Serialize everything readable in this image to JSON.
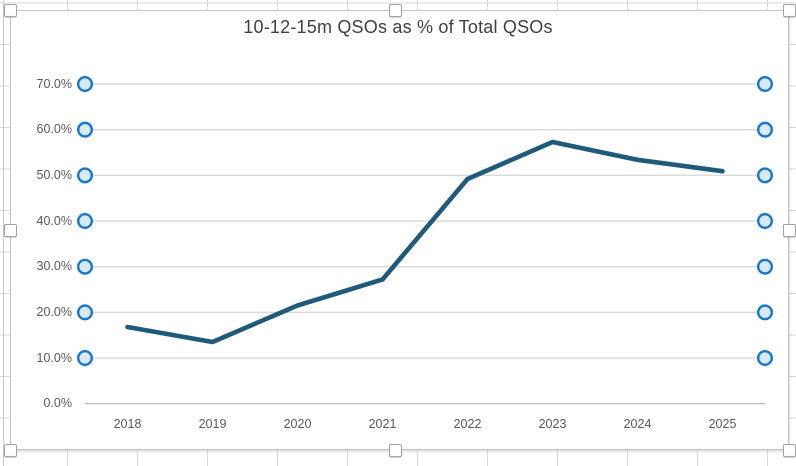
{
  "app": {
    "context_label": "Embedded spreadsheet chart (selected)"
  },
  "chart_data": {
    "type": "line",
    "title": "10-12-15m QSOs as % of Total QSOs",
    "categories": [
      "2018",
      "2019",
      "2020",
      "2021",
      "2022",
      "2023",
      "2024",
      "2025"
    ],
    "series": [
      {
        "name": "10-12-15m QSOs as % of Total QSOs",
        "values": [
          16.8,
          13.5,
          21.5,
          27.2,
          49.2,
          57.3,
          53.4,
          50.9
        ]
      }
    ],
    "xlabel": "",
    "ylabel": "",
    "ylim": [
      0,
      70
    ],
    "ytick_step": 10,
    "ytick_labels": [
      "0.0%",
      "10.0%",
      "20.0%",
      "30.0%",
      "40.0%",
      "50.0%",
      "60.0%",
      "70.0%"
    ],
    "grid": true,
    "legend_position": "none"
  },
  "colors": {
    "series_line": "#1e5b7a",
    "gridline": "#d9d9d9",
    "axis_line": "#c0c0c0",
    "tick_label": "#595959",
    "title_text": "#404040",
    "selection_handle_stroke": "#1377d1",
    "selection_handle_fill": "#d8e9f8",
    "frame_border": "#c2c2c2"
  },
  "selection": {
    "chart_selected": true,
    "gridlines_selected": true,
    "resize_handles": [
      "top-left",
      "top-center",
      "top-right",
      "middle-left",
      "middle-right",
      "bottom-left",
      "bottom-center",
      "bottom-right"
    ]
  }
}
